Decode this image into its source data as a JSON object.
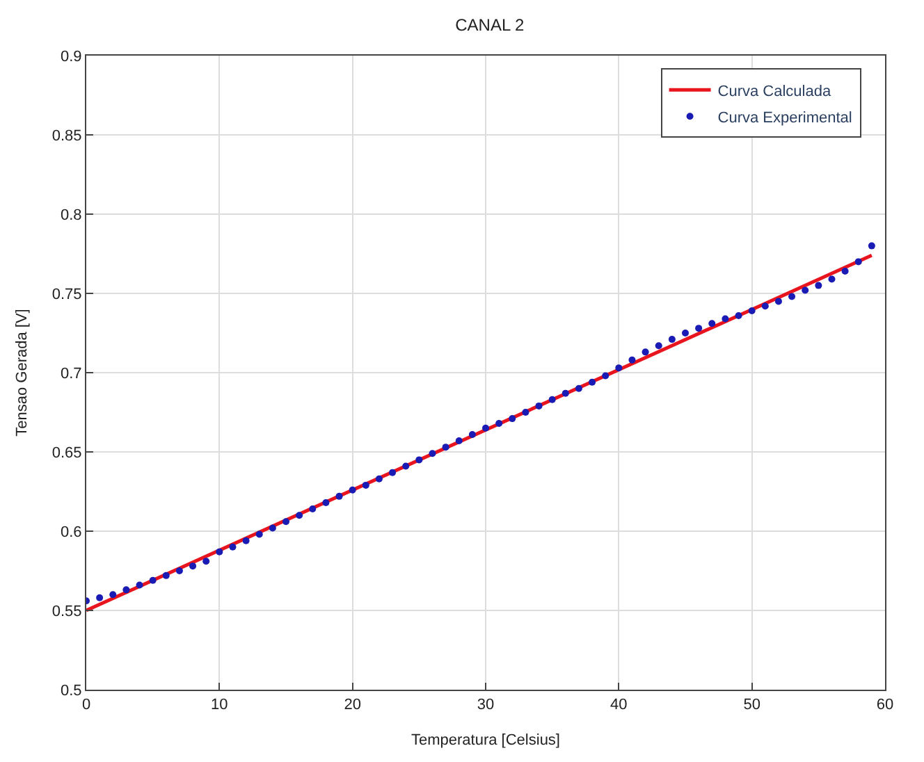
{
  "chart_data": {
    "type": "line",
    "title": "CANAL 2",
    "xlabel": "Temperatura [Celsius]",
    "ylabel": "Tensao Gerada [V]",
    "xlim": [
      0,
      60
    ],
    "xticks": [
      0,
      10,
      20,
      30,
      40,
      50,
      60
    ],
    "ylim": [
      0.5,
      0.9
    ],
    "yticks": [
      0.5,
      0.55,
      0.6,
      0.65,
      0.7,
      0.75,
      0.8,
      0.85,
      0.9
    ],
    "grid": true,
    "legend": "top right",
    "series": [
      {
        "name": "Curva Calculada",
        "color": "#e8141e",
        "x": [
          0,
          59
        ],
        "values": [
          0.55,
          0.774
        ],
        "marker": "none",
        "line_style": "solid"
      },
      {
        "name": "Curva Experimental",
        "type": "scatter",
        "color": "#1a1ab4",
        "marker": "circle",
        "x": [
          0,
          1,
          2,
          3,
          4,
          5,
          6,
          7,
          8,
          9,
          10,
          11,
          12,
          13,
          14,
          15,
          16,
          17,
          18,
          19,
          20,
          21,
          22,
          23,
          24,
          25,
          26,
          27,
          28,
          29,
          30,
          31,
          32,
          33,
          34,
          35,
          36,
          37,
          38,
          39,
          40,
          41,
          42,
          43,
          44,
          45,
          46,
          47,
          48,
          49,
          50,
          51,
          52,
          53,
          54,
          55,
          56,
          57,
          58,
          59
        ],
        "values": [
          0.556,
          0.558,
          0.56,
          0.563,
          0.566,
          0.569,
          0.572,
          0.575,
          0.578,
          0.581,
          0.587,
          0.59,
          0.594,
          0.598,
          0.602,
          0.606,
          0.61,
          0.614,
          0.618,
          0.622,
          0.626,
          0.629,
          0.633,
          0.637,
          0.641,
          0.645,
          0.649,
          0.653,
          0.657,
          0.661,
          0.665,
          0.668,
          0.671,
          0.675,
          0.679,
          0.683,
          0.687,
          0.69,
          0.694,
          0.698,
          0.703,
          0.708,
          0.713,
          0.717,
          0.721,
          0.725,
          0.728,
          0.731,
          0.734,
          0.736,
          0.739,
          0.742,
          0.745,
          0.748,
          0.752,
          0.755,
          0.759,
          0.764,
          0.77,
          0.78
        ]
      }
    ]
  }
}
